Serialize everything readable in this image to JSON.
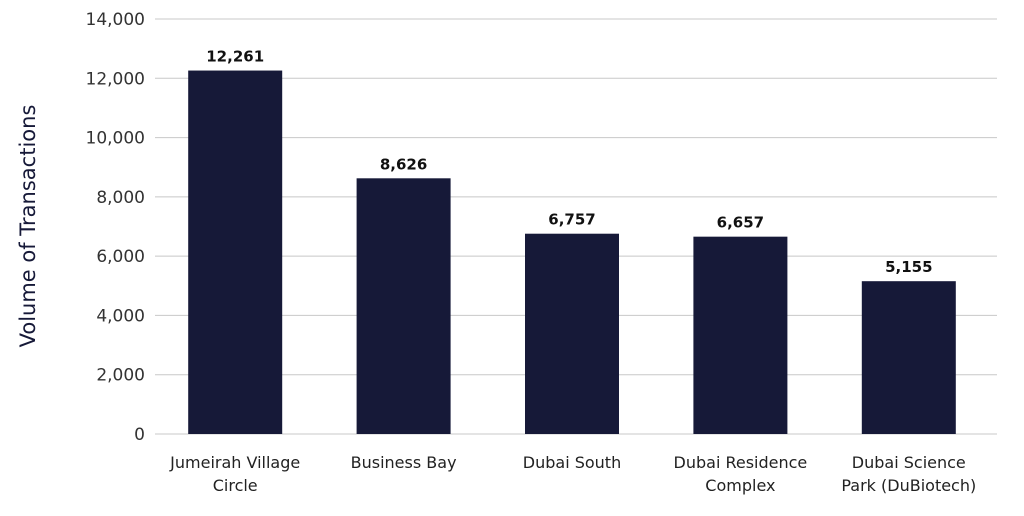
{
  "chart_data": {
    "type": "bar",
    "title": "",
    "xlabel": "",
    "ylabel": "Volume of Transactions",
    "ylim": [
      0,
      14000
    ],
    "yticks": [
      0,
      2000,
      4000,
      6000,
      8000,
      10000,
      12000,
      14000
    ],
    "ytick_labels": [
      "0",
      "2,000",
      "4,000",
      "6,000",
      "8,000",
      "10,000",
      "12,000",
      "14,000"
    ],
    "grid": true,
    "categories": [
      [
        "Jumeirah Village",
        "Circle"
      ],
      [
        "Business Bay"
      ],
      [
        "Dubai South"
      ],
      [
        "Dubai Residence",
        "Complex"
      ],
      [
        "Dubai Science",
        "Park (DuBiotech)"
      ]
    ],
    "values": [
      12261,
      8626,
      6757,
      6657,
      5155
    ],
    "data_labels": [
      "12,261",
      "8,626",
      "6,757",
      "6,657",
      "5,155"
    ],
    "bar_color": "#161938",
    "grid_color": "#c8c8c8"
  }
}
